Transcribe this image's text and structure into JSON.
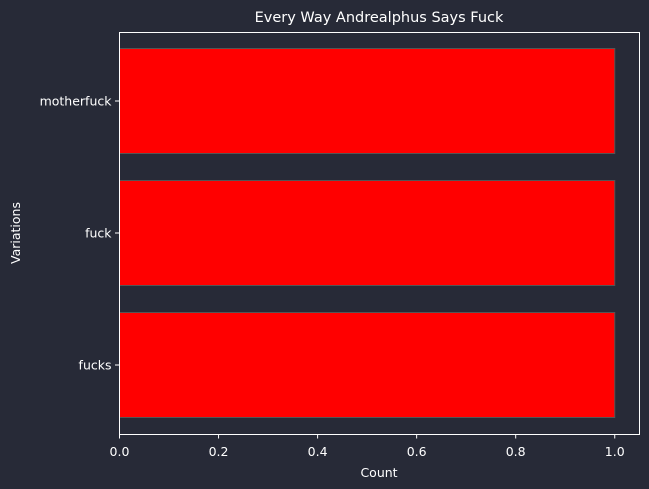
{
  "chart_data": {
    "type": "bar",
    "orientation": "horizontal",
    "title": "Every Way Andrealphus Says Fuck",
    "xlabel": "Count",
    "ylabel": "Variations",
    "categories": [
      "motherfuck",
      "fuck",
      "fucks"
    ],
    "values": [
      1,
      1,
      1
    ],
    "xlim": [
      0,
      1.05
    ],
    "xticks": [
      "0.0",
      "0.2",
      "0.4",
      "0.6",
      "0.8",
      "1.0"
    ],
    "grid": false,
    "bar_color": "#ff0000",
    "bar_edge_color": "#555555",
    "background_color": "#272a37",
    "text_color": "#ffffff"
  }
}
